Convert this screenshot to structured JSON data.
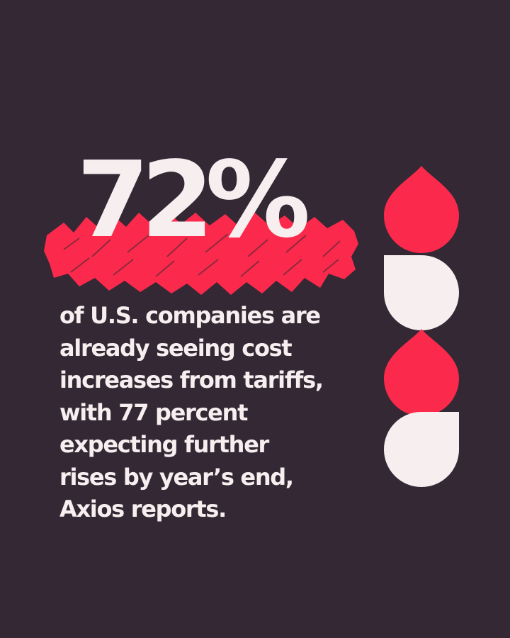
{
  "headline": {
    "stat": "72%"
  },
  "body_text": {
    "lines": [
      "of U.S. companies are",
      "already seeing cost",
      "increases from tariffs,",
      "with 77 percent",
      "expecting further",
      "rises by year’s end,",
      "Axios reports."
    ]
  },
  "colors": {
    "background": "#342834",
    "accent_red": "#fb2a4c",
    "text_cream": "#f7efef"
  },
  "decoration": {
    "scribble": "red-scribble-highlight",
    "shapes": [
      "red-drop",
      "cream-cup",
      "red-drop",
      "cream-cup"
    ]
  }
}
